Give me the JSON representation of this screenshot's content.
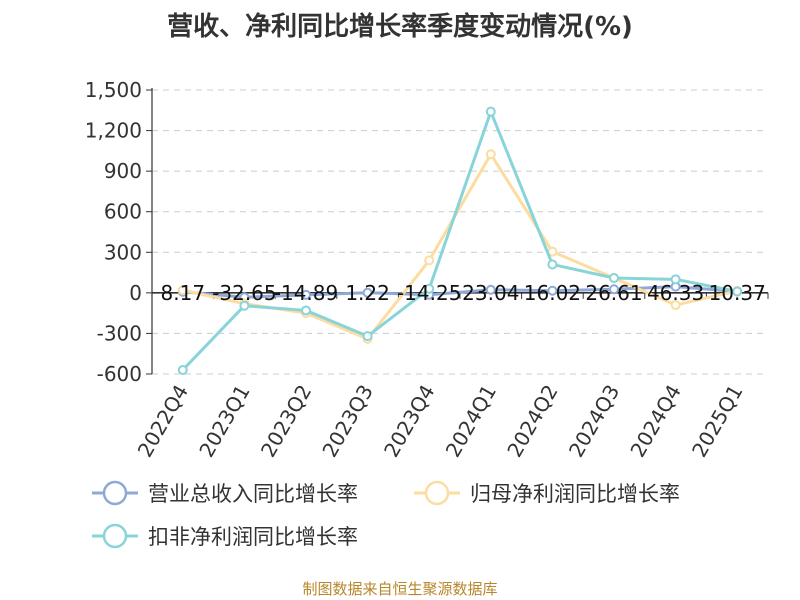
{
  "title": "营收、净利同比增长率季度变动情况(%)",
  "source": "制图数据来自恒生聚源数据库",
  "chart_data": {
    "type": "line",
    "categories": [
      "2022Q4",
      "2023Q1",
      "2023Q2",
      "2023Q3",
      "2023Q4",
      "2024Q1",
      "2024Q2",
      "2024Q3",
      "2024Q4",
      "2025Q1"
    ],
    "ylim": [
      -600,
      1500
    ],
    "yticks": [
      -600,
      -300,
      0,
      300,
      600,
      900,
      1200,
      1500
    ],
    "ytick_labels": [
      "-600",
      "-300",
      "0",
      "300",
      "600",
      "900",
      "1,200",
      "1,500"
    ],
    "grid": true,
    "legend_position": "bottom",
    "series": [
      {
        "name": "营业总收入同比增长率",
        "color": "#8fa9d6",
        "values": [
          8.17,
          -32.65,
          -14.89,
          1.22,
          -14.25,
          23.04,
          16.02,
          26.61,
          46.33,
          10.37
        ],
        "labels": [
          "8.17",
          "-32.65",
          "-14.89",
          "1.22",
          "-14.25",
          "23.04",
          "16.02",
          "26.61",
          "46.33",
          "10.37"
        ]
      },
      {
        "name": "归母净利润同比增长率",
        "color": "#fcdca0",
        "values": [
          20,
          -80,
          -150,
          -340,
          240,
          1025,
          305,
          110,
          -90,
          15
        ]
      },
      {
        "name": "扣非净利润同比增长率",
        "color": "#88d4d8",
        "values": [
          -570,
          -95,
          -130,
          -320,
          30,
          1340,
          210,
          110,
          100,
          10
        ]
      }
    ]
  }
}
